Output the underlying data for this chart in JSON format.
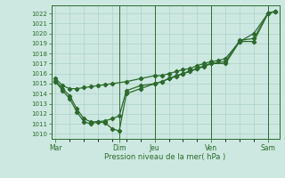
{
  "xlabel": "Pression niveau de la mer( hPa )",
  "ylim": [
    1009.5,
    1022.8
  ],
  "yticks": [
    1010,
    1011,
    1012,
    1013,
    1014,
    1015,
    1016,
    1017,
    1018,
    1019,
    1020,
    1021,
    1022
  ],
  "bg_color": "#cce8e0",
  "grid_color": "#a8ccc8",
  "line_color": "#2d6a2d",
  "day_labels": [
    "Mar",
    "Dim",
    "Jeu",
    "Ven",
    "Sam"
  ],
  "day_positions": [
    0,
    4.5,
    7.0,
    11.0,
    15.0
  ],
  "xlim": [
    -0.3,
    15.8
  ],
  "s1x": [
    0,
    0.5,
    1.0,
    1.5,
    2.0,
    2.5,
    3.0,
    3.5,
    4.0,
    5.0,
    6.0,
    7.0,
    7.5,
    8.0,
    8.5,
    9.0,
    9.5,
    10.0,
    10.5,
    11.0,
    11.5,
    12.0,
    13.0,
    14.0,
    15.0,
    15.5
  ],
  "s1y": [
    1015.5,
    1014.8,
    1014.5,
    1014.5,
    1014.6,
    1014.7,
    1014.8,
    1014.9,
    1015.0,
    1015.2,
    1015.5,
    1015.8,
    1015.8,
    1016.0,
    1016.2,
    1016.4,
    1016.5,
    1016.8,
    1017.0,
    1017.2,
    1017.3,
    1017.5,
    1019.2,
    1019.2,
    1022.0,
    1022.2
  ],
  "s2x": [
    0,
    0.5,
    1.0,
    1.5,
    2.0,
    2.5,
    3.0,
    3.5,
    4.0,
    4.5,
    5.0,
    6.0,
    7.0,
    7.5,
    8.0,
    8.5,
    9.0,
    9.5,
    10.0,
    10.5,
    11.0,
    12.0,
    13.0,
    14.0,
    15.0,
    15.5
  ],
  "s2y": [
    1015.3,
    1014.5,
    1013.8,
    1012.5,
    1011.5,
    1011.2,
    1011.2,
    1011.3,
    1011.5,
    1011.8,
    1014.3,
    1014.8,
    1015.0,
    1015.2,
    1015.5,
    1015.8,
    1016.0,
    1016.3,
    1016.5,
    1016.8,
    1017.0,
    1017.2,
    1019.3,
    1019.5,
    1022.0,
    1022.2
  ],
  "s3x": [
    0,
    0.5,
    1.0,
    1.5,
    2.0,
    2.5,
    3.0,
    3.5,
    4.0,
    4.5,
    5.0,
    6.0,
    7.0,
    7.5,
    8.0,
    8.5,
    9.0,
    9.5,
    10.0,
    10.5,
    11.0,
    12.0,
    13.0,
    14.0,
    15.0,
    15.5
  ],
  "s3y": [
    1015.2,
    1014.3,
    1013.5,
    1012.2,
    1011.2,
    1011.0,
    1011.2,
    1011.1,
    1010.5,
    1010.3,
    1014.0,
    1014.5,
    1015.0,
    1015.2,
    1015.5,
    1015.7,
    1016.0,
    1016.2,
    1016.5,
    1016.7,
    1017.0,
    1017.0,
    1019.2,
    1020.0,
    1022.0,
    1022.2
  ]
}
